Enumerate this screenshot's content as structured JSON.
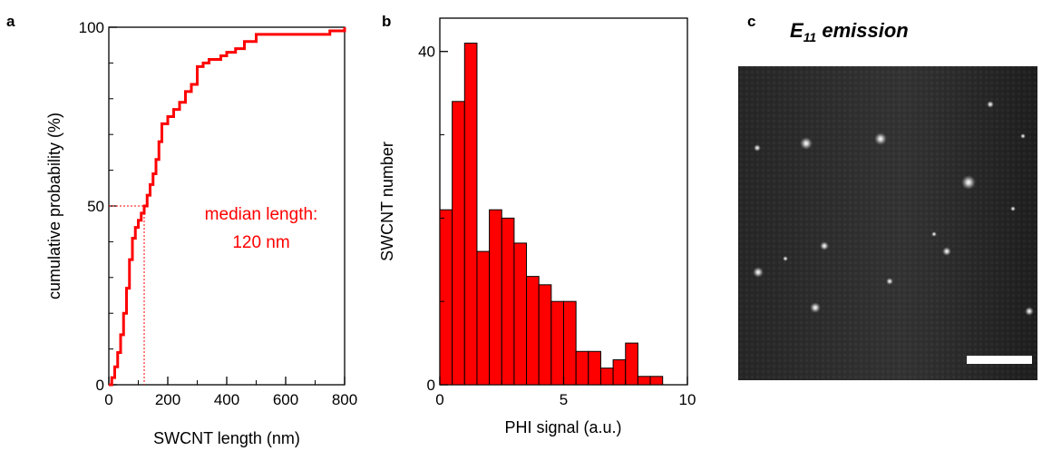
{
  "panel_labels": {
    "a": "a",
    "b": "b",
    "c": "c"
  },
  "colors": {
    "accent": "#ff0000",
    "axis": "#000000",
    "image_bg": "#1c1c1c",
    "scale_bar": "#ffffff"
  },
  "panel_c": {
    "title_main": "E",
    "title_sub": "11",
    "title_rest": " emission",
    "scale_bar": true
  },
  "chart_data": [
    {
      "type": "line",
      "panel": "a",
      "xlabel": "SWCNT length (nm)",
      "ylabel": "cumulative probability (%)",
      "xlim": [
        0,
        800
      ],
      "ylim": [
        0,
        100
      ],
      "xticks": [
        "0",
        "200",
        "400",
        "600",
        "800"
      ],
      "yticks": [
        "0",
        "50",
        "100"
      ],
      "annotation_line1": "median length:",
      "annotation_line2": "120 nm",
      "median": {
        "x": 120,
        "y": 50
      },
      "series": [
        {
          "x": [
            0,
            10,
            20,
            30,
            40,
            50,
            60,
            70,
            80,
            90,
            100,
            110,
            120,
            130,
            140,
            150,
            160,
            170,
            180,
            200,
            220,
            240,
            260,
            280,
            300,
            320,
            340,
            360,
            380,
            400,
            430,
            460,
            500,
            550,
            600,
            650,
            700,
            750,
            780,
            800
          ],
          "y": [
            0,
            2,
            5,
            9,
            14,
            20,
            27,
            35,
            41,
            44,
            46,
            48,
            50,
            53,
            56,
            59,
            63,
            68,
            73,
            75,
            77,
            79,
            82,
            84,
            89,
            90,
            91,
            91,
            92,
            93,
            94,
            96,
            98,
            98,
            98,
            98,
            98,
            99,
            99,
            100
          ]
        }
      ]
    },
    {
      "type": "bar",
      "panel": "b",
      "xlabel": "PHI signal (a.u.)",
      "ylabel": "SWCNT number",
      "xlim": [
        0,
        10
      ],
      "ylim": [
        0,
        44
      ],
      "xticks": [
        "0",
        "5",
        "10"
      ],
      "yticks": [
        "0",
        "40"
      ],
      "bin_width": 0.5,
      "bin_starts": [
        0,
        0.5,
        1,
        1.5,
        2,
        2.5,
        3,
        3.5,
        4,
        4.5,
        5,
        5.5,
        6,
        6.5,
        7,
        7.5,
        8,
        8.5
      ],
      "values": [
        21,
        34,
        41,
        16,
        21,
        20,
        17,
        13,
        12,
        10,
        10,
        4,
        4,
        2,
        3,
        5,
        1,
        1
      ]
    }
  ]
}
